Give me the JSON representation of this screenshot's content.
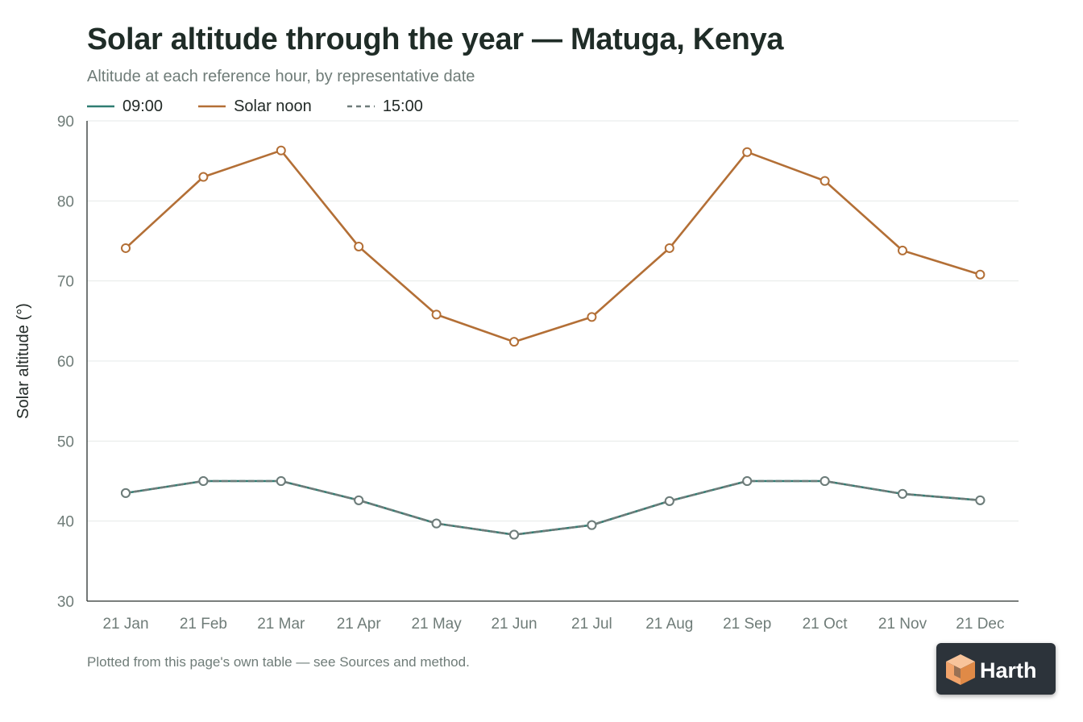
{
  "header": {
    "title": "Solar altitude through the year — Matuga, Kenya",
    "subtitle": "Altitude at each reference hour, by representative date"
  },
  "legend": {
    "items": [
      {
        "label": "09:00",
        "color": "#2f7d72",
        "style": "solid"
      },
      {
        "label": "Solar noon",
        "color": "#b36f36",
        "style": "solid"
      },
      {
        "label": "15:00",
        "color": "#6f7c7a",
        "style": "dashed"
      }
    ]
  },
  "chart_data": {
    "type": "line",
    "title": "Solar altitude through the year — Matuga, Kenya",
    "subtitle": "Altitude at each reference hour, by representative date",
    "xlabel": "",
    "ylabel": "Solar altitude (°)",
    "ylim": [
      30,
      90
    ],
    "yticks": [
      30,
      40,
      50,
      60,
      70,
      80,
      90
    ],
    "grid": true,
    "legend_position": "top-left",
    "categories": [
      "21 Jan",
      "21 Feb",
      "21 Mar",
      "21 Apr",
      "21 May",
      "21 Jun",
      "21 Jul",
      "21 Aug",
      "21 Sep",
      "21 Oct",
      "21 Nov",
      "21 Dec"
    ],
    "series": [
      {
        "name": "09:00",
        "color": "#2f7d72",
        "dashed": false,
        "values": [
          43.5,
          45.0,
          45.0,
          42.6,
          39.7,
          38.3,
          39.5,
          42.5,
          45.0,
          45.0,
          43.4,
          42.6
        ]
      },
      {
        "name": "Solar noon",
        "color": "#b36f36",
        "dashed": false,
        "values": [
          74.1,
          83.0,
          86.3,
          74.3,
          65.8,
          62.4,
          65.5,
          74.1,
          86.1,
          82.5,
          73.8,
          70.8
        ]
      },
      {
        "name": "15:00",
        "color": "#6f7c7a",
        "dashed": true,
        "values": [
          43.5,
          45.0,
          45.0,
          42.6,
          39.7,
          38.3,
          39.5,
          42.5,
          45.0,
          45.0,
          43.4,
          42.6
        ]
      }
    ]
  },
  "footnote": "Plotted from this page's own table — see Sources and method.",
  "logo": {
    "text": "Harth",
    "icon": "harth-cube-logo",
    "colors": {
      "background": "#2c333a",
      "accent": "#f2a46b",
      "text": "#ffffff"
    }
  }
}
